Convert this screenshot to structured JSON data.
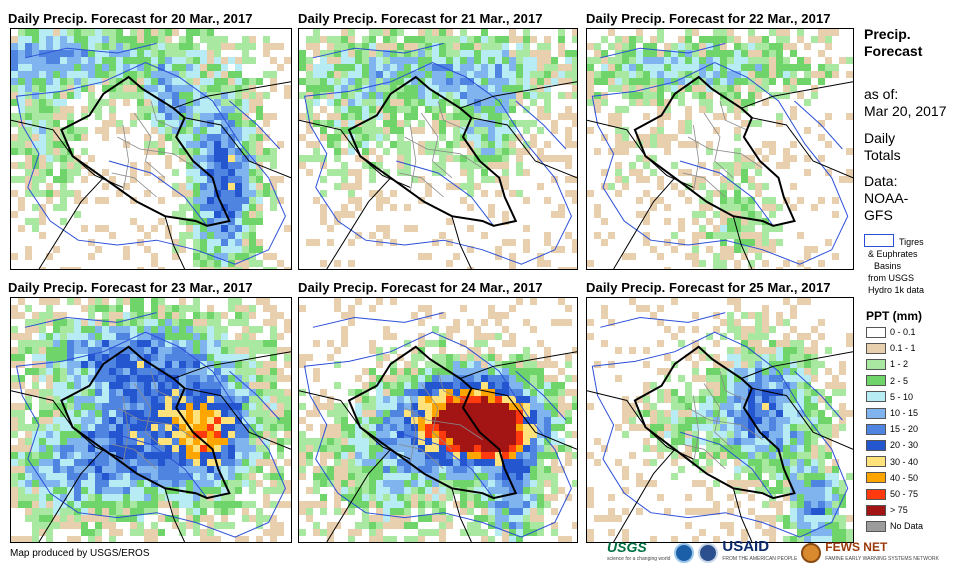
{
  "panels": [
    {
      "title": "Daily Precip. Forecast for 20 Mar., 2017",
      "day": "20 Mar., 2017",
      "intensity": 1.0,
      "pattern": "north-east"
    },
    {
      "title": "Daily Precip. Forecast for 21 Mar., 2017",
      "day": "21 Mar., 2017",
      "intensity": 0.6,
      "pattern": "north"
    },
    {
      "title": "Daily Precip. Forecast for 22 Mar., 2017",
      "day": "22 Mar., 2017",
      "intensity": 0.4,
      "pattern": "north-light"
    },
    {
      "title": "Daily Precip. Forecast for 23 Mar., 2017",
      "day": "23 Mar., 2017",
      "intensity": 1.4,
      "pattern": "central-heavy"
    },
    {
      "title": "Daily Precip. Forecast for 24 Mar., 2017",
      "day": "24 Mar., 2017",
      "intensity": 1.8,
      "pattern": "south-east-heavy"
    },
    {
      "title": "Daily Precip. Forecast for 25 Mar., 2017",
      "day": "25 Mar., 2017",
      "intensity": 1.0,
      "pattern": "east"
    }
  ],
  "sidebar": {
    "title_line1": "Precip.",
    "title_line2": "Forecast",
    "asof_label": "as of:",
    "asof_date": "Mar 20, 2017",
    "totals_line1": "Daily",
    "totals_line2": "Totals",
    "data_line1": "Data:",
    "data_line2": "NOAA-",
    "data_line3": "GFS",
    "basin_label1": "Tigres",
    "basin_label2": "& Euphrates",
    "basin_label3": "Basins",
    "basin_label4": "from USGS",
    "basin_label5": "Hydro 1k data"
  },
  "legend": {
    "title": "PPT (mm)",
    "items": [
      {
        "label": "0 - 0.1",
        "color": "#ffffff"
      },
      {
        "label": "0.1 - 1",
        "color": "#e8cfae"
      },
      {
        "label": "1 - 2",
        "color": "#a8e8a0"
      },
      {
        "label": "2 - 5",
        "color": "#6fd46a"
      },
      {
        "label": "5 - 10",
        "color": "#b8ecf5"
      },
      {
        "label": "10 - 15",
        "color": "#7fb4ee"
      },
      {
        "label": "15 - 20",
        "color": "#4f84e0"
      },
      {
        "label": "20 - 30",
        "color": "#2456d0"
      },
      {
        "label": "30 - 40",
        "color": "#ffe27a"
      },
      {
        "label": "40 - 50",
        "color": "#ffa500"
      },
      {
        "label": "50 - 75",
        "color": "#ff3a0f"
      },
      {
        "label": "> 75",
        "color": "#a31414"
      },
      {
        "label": "No Data",
        "color": "#9c9c9c"
      }
    ]
  },
  "footer": {
    "credit": "Map produced by USGS/EROS"
  },
  "logos": {
    "usgs": "USGS",
    "usgs_tagline": "science for a changing world",
    "usaid": "USAID",
    "usaid_tagline": "FROM THE AMERICAN PEOPLE",
    "fews": "FEWS NET",
    "fews_tagline": "FAMINE EARLY WARNING SYSTEMS NETWORK"
  }
}
